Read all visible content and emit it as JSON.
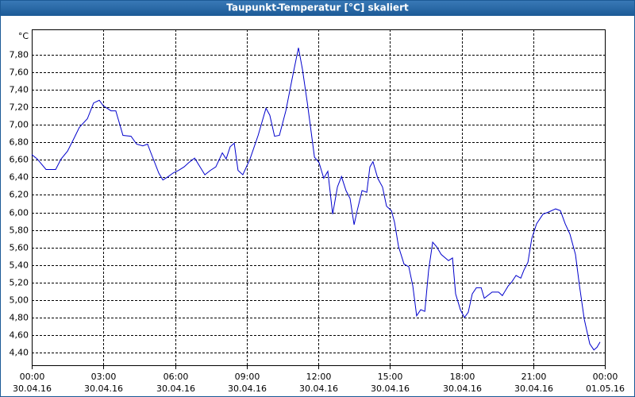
{
  "chart_data": {
    "type": "line",
    "title": "Taupunkt-Temperatur [°C] skaliert",
    "y_unit": "°C",
    "x": [
      0,
      0.23,
      0.6,
      1.0,
      1.23,
      1.5,
      1.76,
      1.99,
      2.33,
      2.59,
      2.83,
      2.99,
      3.32,
      3.52,
      3.82,
      4.16,
      4.39,
      4.65,
      4.85,
      4.99,
      5.32,
      5.49,
      5.72,
      5.92,
      6.15,
      6.38,
      6.58,
      6.82,
      7.25,
      7.48,
      7.71,
      7.98,
      8.14,
      8.31,
      8.48,
      8.64,
      8.84,
      9.14,
      9.48,
      9.81,
      9.97,
      10.17,
      10.37,
      10.64,
      10.9,
      11.17,
      11.34,
      11.54,
      11.84,
      12.03,
      12.23,
      12.4,
      12.6,
      12.8,
      12.97,
      13.16,
      13.33,
      13.5,
      13.63,
      13.83,
      14.03,
      14.16,
      14.29,
      14.49,
      14.69,
      14.86,
      15.06,
      15.19,
      15.36,
      15.59,
      15.79,
      15.96,
      16.12,
      16.29,
      16.46,
      16.62,
      16.79,
      16.95,
      17.15,
      17.45,
      17.62,
      17.75,
      17.95,
      18.12,
      18.28,
      18.45,
      18.62,
      18.82,
      18.95,
      19.28,
      19.55,
      19.71,
      19.95,
      20.11,
      20.28,
      20.48,
      20.61,
      20.78,
      20.94,
      21.14,
      21.41,
      21.61,
      21.94,
      22.14,
      22.34,
      22.54,
      22.77,
      22.94,
      23.14,
      23.37,
      23.54,
      23.67,
      23.8
    ],
    "series": [
      {
        "color": "#0000cc",
        "values": [
          6.66,
          6.61,
          6.49,
          6.49,
          6.61,
          6.7,
          6.84,
          6.97,
          7.07,
          7.25,
          7.28,
          7.22,
          7.16,
          7.16,
          6.88,
          6.87,
          6.78,
          6.76,
          6.78,
          6.68,
          6.45,
          6.37,
          6.41,
          6.45,
          6.48,
          6.52,
          6.57,
          6.62,
          6.43,
          6.48,
          6.52,
          6.68,
          6.61,
          6.75,
          6.79,
          6.48,
          6.43,
          6.61,
          6.88,
          7.19,
          7.11,
          6.87,
          6.88,
          7.16,
          7.52,
          7.88,
          7.63,
          7.25,
          6.63,
          6.57,
          6.39,
          6.47,
          5.98,
          6.29,
          6.41,
          6.25,
          6.16,
          5.86,
          6.02,
          6.25,
          6.23,
          6.52,
          6.58,
          6.39,
          6.29,
          6.07,
          6.02,
          5.89,
          5.61,
          5.41,
          5.38,
          5.16,
          4.82,
          4.89,
          4.87,
          5.34,
          5.66,
          5.61,
          5.52,
          5.45,
          5.48,
          5.07,
          4.89,
          4.8,
          4.86,
          5.07,
          5.14,
          5.14,
          5.02,
          5.09,
          5.09,
          5.05,
          5.16,
          5.21,
          5.28,
          5.25,
          5.34,
          5.43,
          5.7,
          5.87,
          5.98,
          6.0,
          6.04,
          6.02,
          5.87,
          5.75,
          5.52,
          5.16,
          4.78,
          4.5,
          4.43,
          4.46,
          4.52
        ]
      }
    ],
    "xlim": [
      0,
      24
    ],
    "xticks": [
      {
        "value": 0,
        "label": "00:00"
      },
      {
        "value": 3,
        "label": "03:00"
      },
      {
        "value": 6,
        "label": "06:00"
      },
      {
        "value": 9,
        "label": "09:00"
      },
      {
        "value": 12,
        "label": "12:00"
      },
      {
        "value": 15,
        "label": "15:00"
      },
      {
        "value": 18,
        "label": "18:00"
      },
      {
        "value": 21,
        "label": "21:00"
      },
      {
        "value": 24,
        "label": "00:00"
      }
    ],
    "xtick_dates": [
      "30.04.16",
      "30.04.16",
      "30.04.16",
      "30.04.16",
      "30.04.16",
      "30.04.16",
      "30.04.16",
      "30.04.16",
      "01.05.16"
    ],
    "ylim": [
      4.255,
      8.09
    ],
    "yticks": [
      {
        "value": 4.4,
        "label": "4,40"
      },
      {
        "value": 4.6,
        "label": "4,60"
      },
      {
        "value": 4.8,
        "label": "4,80"
      },
      {
        "value": 5.0,
        "label": "5,00"
      },
      {
        "value": 5.2,
        "label": "5,20"
      },
      {
        "value": 5.4,
        "label": "5,40"
      },
      {
        "value": 5.6,
        "label": "5,60"
      },
      {
        "value": 5.8,
        "label": "5,80"
      },
      {
        "value": 6.0,
        "label": "6,00"
      },
      {
        "value": 6.2,
        "label": "6,20"
      },
      {
        "value": 6.4,
        "label": "6,40"
      },
      {
        "value": 6.6,
        "label": "6,60"
      },
      {
        "value": 6.8,
        "label": "6,80"
      },
      {
        "value": 7.0,
        "label": "7,00"
      },
      {
        "value": 7.2,
        "label": "7,20"
      },
      {
        "value": 7.4,
        "label": "7,40"
      },
      {
        "value": 7.6,
        "label": "7,60"
      },
      {
        "value": 7.8,
        "label": "7,80"
      }
    ],
    "grid": true
  }
}
